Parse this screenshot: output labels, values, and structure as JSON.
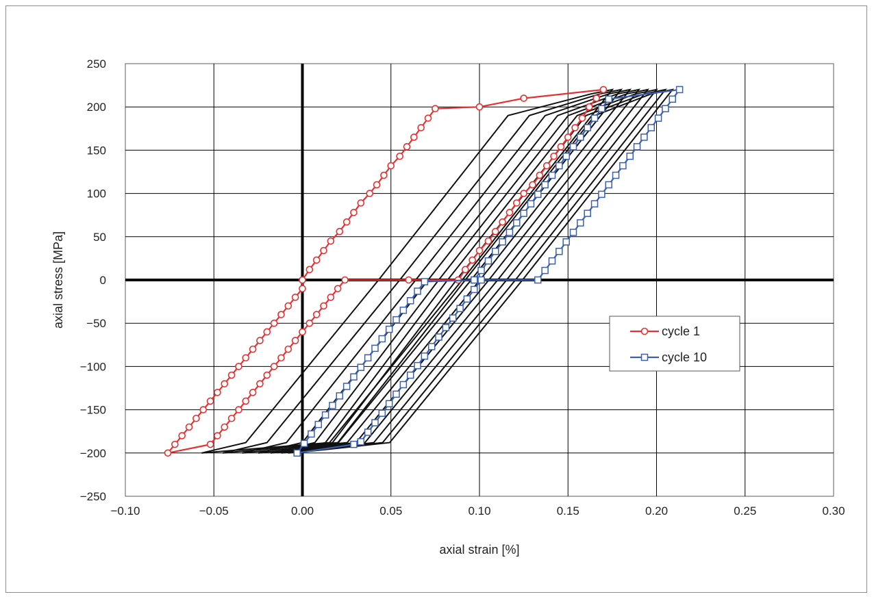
{
  "chart_data": {
    "type": "line",
    "xlabel": "axial strain [%]",
    "ylabel": "axial stress [MPa]",
    "xlim": [
      -0.1,
      0.3
    ],
    "ylim": [
      -250,
      250
    ],
    "x_ticks": [
      "−0.10",
      "−0.05",
      "0.00",
      "0.05",
      "0.10",
      "0.15",
      "0.20",
      "0.25",
      "0.30"
    ],
    "y_ticks": [
      "250",
      "200",
      "150",
      "100",
      "50",
      "0",
      "−50",
      "−100",
      "−150",
      "−200",
      "−250"
    ],
    "grid": true,
    "legend_position": "right-middle",
    "series": [
      {
        "name": "cycle 1",
        "color": "#e83030",
        "marker": "circle",
        "points": [
          [
            0.0,
            0
          ],
          [
            0.004,
            12
          ],
          [
            0.008,
            23
          ],
          [
            0.012,
            34
          ],
          [
            0.016,
            45
          ],
          [
            0.021,
            56
          ],
          [
            0.025,
            67
          ],
          [
            0.029,
            78
          ],
          [
            0.033,
            89
          ],
          [
            0.038,
            100
          ],
          [
            0.042,
            110
          ],
          [
            0.046,
            121
          ],
          [
            0.05,
            132
          ],
          [
            0.055,
            143
          ],
          [
            0.059,
            154
          ],
          [
            0.063,
            165
          ],
          [
            0.067,
            176
          ],
          [
            0.071,
            187
          ],
          [
            0.075,
            198
          ],
          [
            0.1,
            200
          ],
          [
            0.125,
            210
          ],
          [
            0.17,
            220
          ],
          [
            0.166,
            210
          ],
          [
            0.162,
            200
          ],
          [
            0.158,
            187
          ],
          [
            0.154,
            176
          ],
          [
            0.15,
            165
          ],
          [
            0.146,
            154
          ],
          [
            0.142,
            143
          ],
          [
            0.138,
            132
          ],
          [
            0.134,
            121
          ],
          [
            0.13,
            110
          ],
          [
            0.125,
            100
          ],
          [
            0.121,
            89
          ],
          [
            0.117,
            78
          ],
          [
            0.113,
            67
          ],
          [
            0.109,
            56
          ],
          [
            0.105,
            45
          ],
          [
            0.1,
            34
          ],
          [
            0.096,
            23
          ],
          [
            0.092,
            12
          ],
          [
            0.088,
            0
          ],
          [
            0.06,
            0
          ],
          [
            0.024,
            0
          ],
          [
            0.02,
            -10
          ],
          [
            0.016,
            -20
          ],
          [
            0.012,
            -30
          ],
          [
            0.008,
            -40
          ],
          [
            0.004,
            -50
          ],
          [
            0.0,
            -60
          ],
          [
            -0.004,
            -70
          ],
          [
            -0.008,
            -80
          ],
          [
            -0.012,
            -90
          ],
          [
            -0.016,
            -100
          ],
          [
            -0.02,
            -110
          ],
          [
            -0.024,
            -120
          ],
          [
            -0.028,
            -130
          ],
          [
            -0.032,
            -140
          ],
          [
            -0.036,
            -150
          ],
          [
            -0.04,
            -160
          ],
          [
            -0.044,
            -170
          ],
          [
            -0.048,
            -180
          ],
          [
            -0.052,
            -190
          ],
          [
            -0.076,
            -200
          ],
          [
            -0.072,
            -190
          ],
          [
            -0.068,
            -180
          ],
          [
            -0.064,
            -170
          ],
          [
            -0.06,
            -160
          ],
          [
            -0.056,
            -150
          ],
          [
            -0.052,
            -140
          ],
          [
            -0.048,
            -130
          ],
          [
            -0.044,
            -120
          ],
          [
            -0.04,
            -110
          ],
          [
            -0.036,
            -100
          ],
          [
            -0.032,
            -90
          ],
          [
            -0.028,
            -80
          ],
          [
            -0.024,
            -70
          ],
          [
            -0.02,
            -60
          ],
          [
            -0.016,
            -50
          ],
          [
            -0.012,
            -40
          ],
          [
            -0.008,
            -30
          ],
          [
            -0.004,
            -20
          ],
          [
            0.0,
            -10
          ],
          [
            0.0,
            0
          ]
        ]
      },
      {
        "name": "cycle 10",
        "color": "#3a5fb0",
        "marker": "square",
        "points": [
          [
            0.097,
            0
          ],
          [
            0.101,
            11
          ],
          [
            0.105,
            22
          ],
          [
            0.109,
            33
          ],
          [
            0.113,
            44
          ],
          [
            0.117,
            55
          ],
          [
            0.121,
            66
          ],
          [
            0.125,
            77
          ],
          [
            0.129,
            88
          ],
          [
            0.133,
            99
          ],
          [
            0.137,
            110
          ],
          [
            0.141,
            121
          ],
          [
            0.145,
            132
          ],
          [
            0.149,
            143
          ],
          [
            0.153,
            154
          ],
          [
            0.157,
            165
          ],
          [
            0.161,
            176
          ],
          [
            0.165,
            187
          ],
          [
            0.169,
            198
          ],
          [
            0.173,
            209
          ],
          [
            0.213,
            220
          ],
          [
            0.209,
            209
          ],
          [
            0.205,
            198
          ],
          [
            0.201,
            187
          ],
          [
            0.197,
            176
          ],
          [
            0.193,
            165
          ],
          [
            0.189,
            154
          ],
          [
            0.185,
            143
          ],
          [
            0.181,
            132
          ],
          [
            0.177,
            121
          ],
          [
            0.173,
            110
          ],
          [
            0.169,
            99
          ],
          [
            0.165,
            88
          ],
          [
            0.161,
            77
          ],
          [
            0.157,
            66
          ],
          [
            0.153,
            55
          ],
          [
            0.149,
            44
          ],
          [
            0.145,
            33
          ],
          [
            0.141,
            22
          ],
          [
            0.137,
            11
          ],
          [
            0.133,
            0
          ],
          [
            0.101,
            0
          ],
          [
            0.097,
            -11
          ],
          [
            0.093,
            -22
          ],
          [
            0.089,
            -33
          ],
          [
            0.085,
            -44
          ],
          [
            0.081,
            -55
          ],
          [
            0.077,
            -66
          ],
          [
            0.073,
            -77
          ],
          [
            0.069,
            -88
          ],
          [
            0.065,
            -99
          ],
          [
            0.061,
            -110
          ],
          [
            0.057,
            -121
          ],
          [
            0.053,
            -132
          ],
          [
            0.049,
            -143
          ],
          [
            0.045,
            -154
          ],
          [
            0.041,
            -165
          ],
          [
            0.037,
            -176
          ],
          [
            0.033,
            -187
          ],
          [
            0.029,
            -190
          ],
          [
            -0.003,
            -200
          ],
          [
            0.001,
            -189
          ],
          [
            0.005,
            -178
          ],
          [
            0.009,
            -167
          ],
          [
            0.013,
            -156
          ],
          [
            0.017,
            -145
          ],
          [
            0.021,
            -134
          ],
          [
            0.025,
            -123
          ],
          [
            0.029,
            -112
          ],
          [
            0.033,
            -101
          ],
          [
            0.037,
            -90
          ],
          [
            0.041,
            -79
          ],
          [
            0.045,
            -68
          ],
          [
            0.049,
            -57
          ],
          [
            0.053,
            -46
          ],
          [
            0.057,
            -35
          ],
          [
            0.061,
            -24
          ],
          [
            0.065,
            -13
          ],
          [
            0.069,
            -2
          ],
          [
            0.097,
            0
          ]
        ]
      }
    ],
    "intermediate_cycles": [
      {
        "c": 2,
        "upper_x": 0.175,
        "lower_x": -0.057,
        "zero_up_x": 0.043,
        "zero_dn_x": 0.013
      },
      {
        "c": 3,
        "upper_x": 0.18,
        "lower_x": -0.045,
        "zero_up_x": 0.055,
        "zero_dn_x": 0.03
      },
      {
        "c": 4,
        "upper_x": 0.185,
        "lower_x": -0.034,
        "zero_up_x": 0.064,
        "zero_dn_x": 0.044
      },
      {
        "c": 5,
        "upper_x": 0.19,
        "lower_x": -0.025,
        "zero_up_x": 0.071,
        "zero_dn_x": 0.055
      },
      {
        "c": 6,
        "upper_x": 0.195,
        "lower_x": -0.018,
        "zero_up_x": 0.077,
        "zero_dn_x": 0.064
      },
      {
        "c": 7,
        "upper_x": 0.2,
        "lower_x": -0.012,
        "zero_up_x": 0.082,
        "zero_dn_x": 0.072
      },
      {
        "c": 8,
        "upper_x": 0.205,
        "lower_x": -0.008,
        "zero_up_x": 0.087,
        "zero_dn_x": 0.08
      },
      {
        "c": 9,
        "upper_x": 0.209,
        "lower_x": -0.005,
        "zero_up_x": 0.092,
        "zero_dn_x": 0.088
      }
    ],
    "stress_peak": 220,
    "stress_trough": -200
  }
}
